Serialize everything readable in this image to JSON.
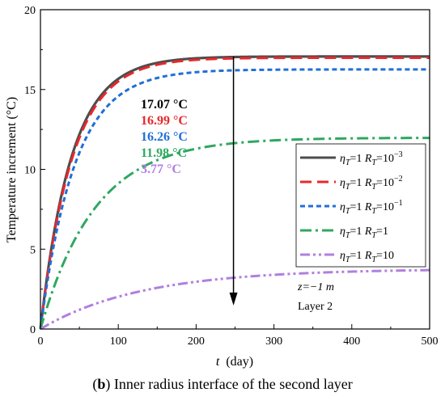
{
  "caption": {
    "tag": "b",
    "text": "Inner radius interface of the second layer"
  },
  "chart_data": {
    "type": "line",
    "xlabel_var": "t",
    "xlabel_unit": "(day)",
    "ylabel": "Temperature increment (°C)",
    "xlim": [
      0,
      500
    ],
    "ylim": [
      0,
      20
    ],
    "x_ticks": [
      0,
      100,
      200,
      300,
      400,
      500
    ],
    "y_ticks": [
      0,
      5,
      10,
      15,
      20
    ],
    "grid": false,
    "legend_position": "right",
    "series": [
      {
        "name": "ηT=1 RT=10^-3",
        "label_parts": [
          "η",
          "T",
          "=1 R",
          "T",
          "=10",
          "−3"
        ],
        "color": "#4d4d4d",
        "dash": "solid",
        "final_value": 17.07,
        "tau": 40
      },
      {
        "name": "ηT=1 RT=10^-2",
        "label_parts": [
          "η",
          "T",
          "=1 R",
          "T",
          "=10",
          "−2"
        ],
        "color": "#e8282b",
        "dash": "long-dash",
        "final_value": 16.99,
        "tau": 41
      },
      {
        "name": "ηT=1 RT=10^-1",
        "label_parts": [
          "η",
          "T",
          "=1 R",
          "T",
          "=10",
          "−1"
        ],
        "color": "#1f6fd6",
        "dash": "short-dash",
        "final_value": 16.26,
        "tau": 44
      },
      {
        "name": "ηT=1 RT=1",
        "label_parts": [
          "η",
          "T",
          "=1 R",
          "T",
          "=1",
          ""
        ],
        "color": "#2ea860",
        "dash": "dash-dot",
        "final_value": 11.98,
        "tau": 70
      },
      {
        "name": "ηT=1 RT=10",
        "label_parts": [
          "η",
          "T",
          "=1 R",
          "T",
          "=10",
          ""
        ],
        "color": "#b07fe0",
        "dash": "dash-dot-dot",
        "final_value": 3.77,
        "tau": 130
      }
    ],
    "annotations": {
      "values": [
        {
          "text": "17.07 °C",
          "color": "#000000"
        },
        {
          "text": "16.99 °C",
          "color": "#e8282b"
        },
        {
          "text": "16.26 °C",
          "color": "#1f6fd6"
        },
        {
          "text": "11.98 °C",
          "color": "#2ea860"
        },
        {
          "text": "3.77 °C",
          "color": "#b07fe0"
        }
      ],
      "depth": "z=−1 m",
      "layer": "Layer 2",
      "arrow_x": 248,
      "arrow_from": 17.07,
      "arrow_to": 3.3
    }
  }
}
